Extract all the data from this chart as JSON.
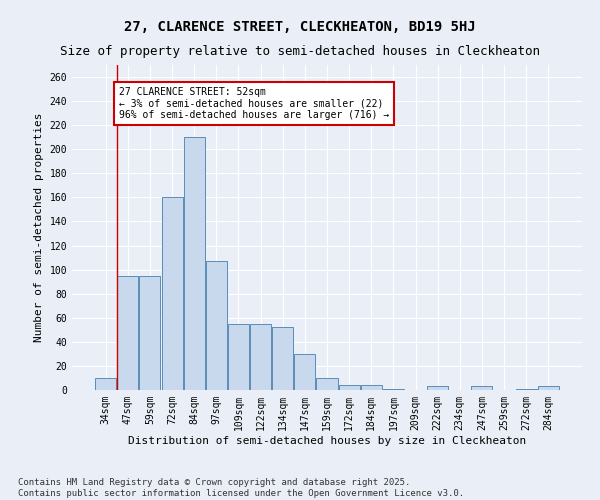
{
  "title": "27, CLARENCE STREET, CLECKHEATON, BD19 5HJ",
  "subtitle": "Size of property relative to semi-detached houses in Cleckheaton",
  "xlabel": "Distribution of semi-detached houses by size in Cleckheaton",
  "ylabel": "Number of semi-detached properties",
  "categories": [
    "34sqm",
    "47sqm",
    "59sqm",
    "72sqm",
    "84sqm",
    "97sqm",
    "109sqm",
    "122sqm",
    "134sqm",
    "147sqm",
    "159sqm",
    "172sqm",
    "184sqm",
    "197sqm",
    "209sqm",
    "222sqm",
    "234sqm",
    "247sqm",
    "259sqm",
    "272sqm",
    "284sqm"
  ],
  "values": [
    10,
    95,
    95,
    160,
    210,
    107,
    55,
    55,
    52,
    30,
    10,
    4,
    4,
    1,
    0,
    3,
    0,
    3,
    0,
    1,
    3
  ],
  "bar_color": "#c9d9ed",
  "bar_edge_color": "#5b8db8",
  "annotation_title": "27 CLARENCE STREET: 52sqm",
  "annotation_line1": "← 3% of semi-detached houses are smaller (22)",
  "annotation_line2": "96% of semi-detached houses are larger (716) →",
  "annotation_box_color": "#ffffff",
  "annotation_box_edge": "#cc0000",
  "vline_color": "#cc0000",
  "vline_x": 0.525,
  "ylim": [
    0,
    270
  ],
  "yticks": [
    0,
    20,
    40,
    60,
    80,
    100,
    120,
    140,
    160,
    180,
    200,
    220,
    240,
    260
  ],
  "footer_line1": "Contains HM Land Registry data © Crown copyright and database right 2025.",
  "footer_line2": "Contains public sector information licensed under the Open Government Licence v3.0.",
  "bg_color": "#eaeff7",
  "plot_bg_color": "#eaeff7",
  "title_fontsize": 10,
  "subtitle_fontsize": 9,
  "axis_label_fontsize": 8,
  "tick_fontsize": 7,
  "annotation_fontsize": 7,
  "footer_fontsize": 6.5
}
